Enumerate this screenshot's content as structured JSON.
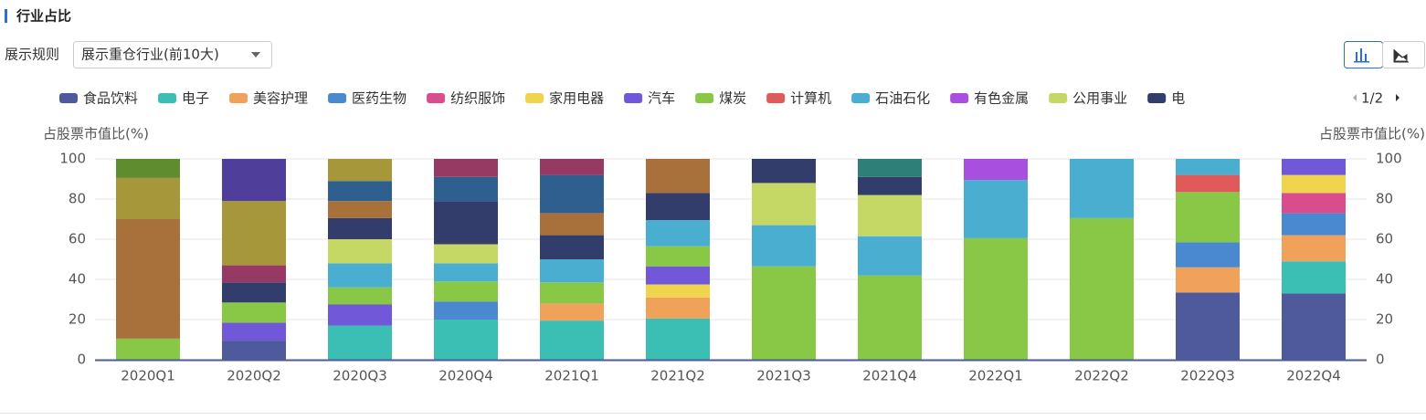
{
  "header": {
    "title": "行业占比",
    "rule_label": "展示规则",
    "rule_select": "展示重仓行业(前10大)"
  },
  "chart_data": {
    "type": "bar",
    "stacked": true,
    "y_label": "占股票市值比(%)",
    "y2_label": "占股票市值比(%)",
    "legend_page": "1/2",
    "categories": [
      "2020Q1",
      "2020Q2",
      "2020Q3",
      "2020Q4",
      "2021Q1",
      "2021Q2",
      "2021Q3",
      "2021Q4",
      "2022Q1",
      "2022Q2",
      "2022Q3",
      "2022Q4"
    ],
    "ylim": [
      0,
      100
    ],
    "yticks": [
      0,
      20,
      40,
      60,
      80,
      100
    ],
    "y2lim": [
      0,
      100
    ],
    "y2ticks": [
      0,
      20,
      40,
      60,
      80,
      100
    ],
    "grid": true,
    "series": [
      {
        "name": "食品饮料",
        "color": "#4e5a9b",
        "values": [
          null,
          9.5,
          null,
          null,
          null,
          null,
          null,
          null,
          null,
          null,
          33.5,
          33
        ]
      },
      {
        "name": "电子",
        "color": "#3bbfb5",
        "values": [
          null,
          null,
          17,
          20,
          19.5,
          20.5,
          null,
          null,
          null,
          null,
          null,
          16
        ]
      },
      {
        "name": "美容护理",
        "color": "#f0a25a",
        "values": [
          null,
          null,
          null,
          null,
          8.5,
          10.5,
          null,
          null,
          null,
          null,
          12.5,
          13
        ]
      },
      {
        "name": "医药生物",
        "color": "#4a88d0",
        "values": [
          null,
          null,
          null,
          9,
          null,
          null,
          null,
          null,
          null,
          null,
          12.5,
          11
        ]
      },
      {
        "name": "纺织服饰",
        "color": "#d94d8c",
        "values": [
          null,
          null,
          null,
          null,
          null,
          null,
          null,
          null,
          null,
          null,
          null,
          10
        ]
      },
      {
        "name": "家用电器",
        "color": "#f0d44e",
        "values": [
          null,
          null,
          null,
          null,
          null,
          6.5,
          null,
          null,
          null,
          null,
          null,
          9
        ]
      },
      {
        "name": "汽车",
        "color": "#7058d8",
        "values": [
          null,
          9,
          10.5,
          null,
          null,
          9,
          null,
          null,
          null,
          null,
          null,
          8
        ]
      },
      {
        "name": "煤炭",
        "color": "#88c846",
        "values": [
          10.5,
          10,
          8.5,
          10,
          10.5,
          10,
          46.5,
          42,
          60.5,
          70.5,
          25,
          null
        ]
      },
      {
        "name": "计算机",
        "color": "#e05a5a",
        "values": [
          null,
          null,
          null,
          null,
          null,
          null,
          null,
          null,
          null,
          null,
          8.5,
          null
        ]
      },
      {
        "name": "石油石化",
        "color": "#4aaed0",
        "values": [
          null,
          null,
          12,
          9,
          11.5,
          13,
          20.5,
          19.5,
          29,
          29.5,
          8,
          null
        ]
      },
      {
        "name": "有色金属",
        "color": "#a94fe0",
        "values": [
          null,
          null,
          null,
          null,
          null,
          null,
          null,
          null,
          10.5,
          null,
          null,
          null
        ]
      },
      {
        "name": "公用事业",
        "color": "#c5d866",
        "values": [
          null,
          null,
          12,
          9.5,
          null,
          null,
          21,
          20.5,
          null,
          null,
          null,
          null
        ]
      },
      {
        "name": "电",
        "color": "#333d6b",
        "values": [
          null,
          10,
          10.5,
          21.5,
          12,
          13.5,
          12,
          9,
          null,
          null,
          null,
          null
        ]
      },
      {
        "color": "#a8703a",
        "values": [
          59.5,
          null,
          8.5,
          null,
          11,
          17,
          null,
          null,
          null,
          null,
          null,
          null
        ]
      },
      {
        "color": "#2e5f8e",
        "values": [
          null,
          null,
          10,
          12,
          19,
          null,
          null,
          null,
          null,
          null,
          null,
          null
        ]
      },
      {
        "color": "#963a64",
        "values": [
          null,
          8.5,
          null,
          9,
          8,
          null,
          null,
          null,
          null,
          null,
          null,
          null
        ]
      },
      {
        "color": "#a5973a",
        "values": [
          20.5,
          32,
          11,
          null,
          null,
          null,
          null,
          null,
          null,
          null,
          null,
          null
        ]
      },
      {
        "color": "#5e8c2e",
        "values": [
          9.5,
          null,
          null,
          null,
          null,
          null,
          null,
          null,
          null,
          null,
          null,
          null
        ]
      },
      {
        "color": "#503f9a",
        "values": [
          null,
          21,
          null,
          null,
          null,
          null,
          null,
          null,
          null,
          null,
          null,
          null
        ]
      },
      {
        "color": "#2d7f77",
        "values": [
          null,
          null,
          null,
          null,
          null,
          null,
          null,
          9,
          null,
          null,
          null,
          null
        ]
      }
    ]
  }
}
